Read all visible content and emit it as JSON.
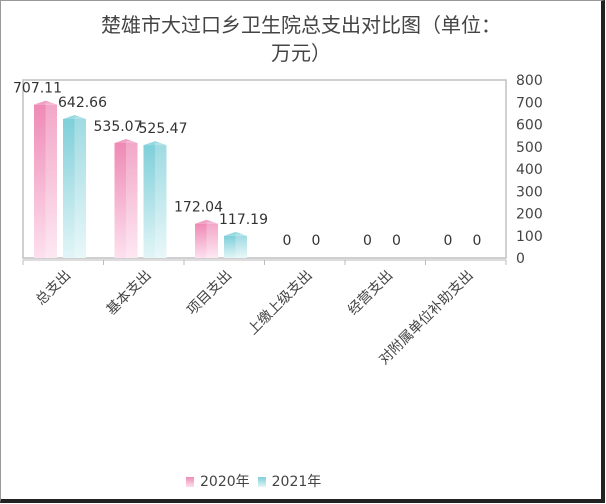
{
  "chart_data": {
    "type": "bar",
    "title_line1": "楚雄市大过口乡卫生院总支出对比图（单位：",
    "title_line2": "万元）",
    "categories": [
      "总支出",
      "基本支出",
      "项目支出",
      "上缴上级支出",
      "经营支出",
      "对附属单位补助支出"
    ],
    "series": [
      {
        "name": "2020年",
        "values": [
          707.11,
          535.07,
          172.04,
          0,
          0,
          0
        ],
        "labels": [
          "707.11",
          "535.07",
          "172.04",
          "0",
          "0",
          "0"
        ],
        "color": "#ee8ab5"
      },
      {
        "name": "2021年",
        "values": [
          642.66,
          525.47,
          117.19,
          0,
          0,
          0
        ],
        "labels": [
          "642.66",
          "525.47",
          "117.19",
          "0",
          "0",
          "0"
        ],
        "color": "#7fcfd9"
      }
    ],
    "ylim": [
      0,
      800
    ],
    "yticks": [
      "0",
      "100",
      "200",
      "300",
      "400",
      "500",
      "600",
      "700",
      "800"
    ],
    "yaxis_position": "right",
    "legend_position": "bottom"
  }
}
